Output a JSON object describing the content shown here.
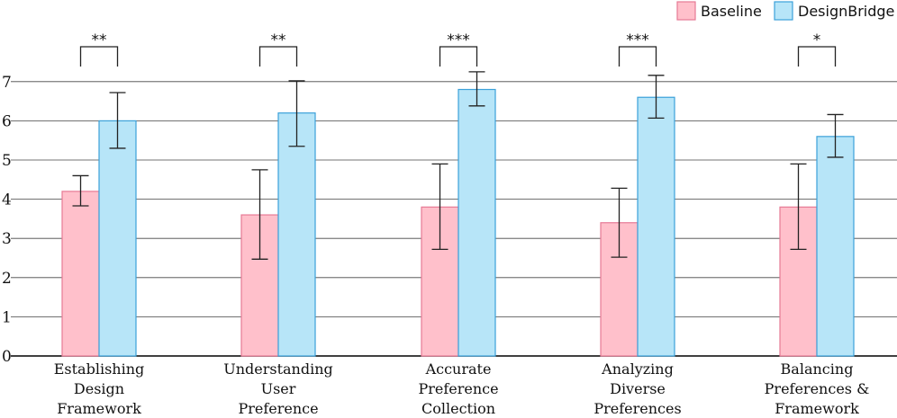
{
  "chart_data": {
    "type": "bar",
    "categories": [
      [
        "Establishing",
        "Design",
        "Framework"
      ],
      [
        "Understanding",
        "User",
        "Preference"
      ],
      [
        "Accurate",
        "Preference",
        "Collection"
      ],
      [
        "Analyzing",
        "Diverse",
        "Preferences"
      ],
      [
        "Balancing",
        "Preferences &",
        "Framework"
      ]
    ],
    "series": [
      {
        "name": "Baseline",
        "values": [
          4.2,
          3.6,
          3.8,
          3.4,
          3.8
        ],
        "error_low": [
          3.83,
          2.47,
          2.72,
          2.52,
          2.72
        ],
        "error_high": [
          4.6,
          4.75,
          4.9,
          4.28,
          4.9
        ],
        "color": "#ffc0cb",
        "edge_color": "#e77a95"
      },
      {
        "name": "DesignBridge",
        "values": [
          6.0,
          6.2,
          6.8,
          6.6,
          5.6
        ],
        "error_low": [
          5.3,
          5.35,
          6.38,
          6.07,
          5.07
        ],
        "error_high": [
          6.72,
          7.02,
          7.25,
          7.16,
          6.16
        ],
        "color": "#b7e5f8",
        "edge_color": "#3ba1d9"
      }
    ],
    "significance": [
      "**",
      "**",
      "***",
      "***",
      "*"
    ],
    "yticks": [
      0,
      1,
      2,
      3,
      4,
      5,
      6,
      7
    ],
    "ylim": [
      0,
      8.2
    ],
    "grid": "horizontal",
    "legend": "top-right"
  }
}
